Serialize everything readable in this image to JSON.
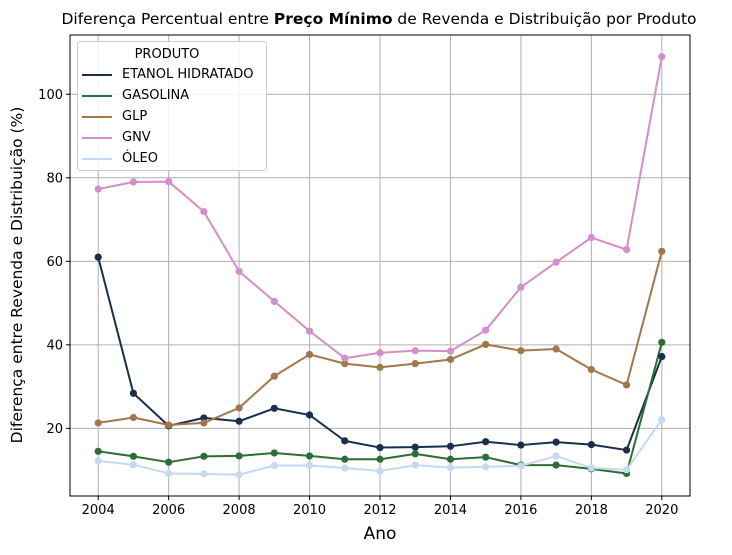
{
  "title": {
    "prefix": "Diferença Percentual entre ",
    "bold": "Preço Mínimo",
    "suffix": " de Revenda e Distribuição por Produto"
  },
  "chart_data": {
    "type": "line",
    "title": "Diferença Percentual entre Preço Mínimo de Revenda e Distribuição por Produto",
    "xlabel": "Ano",
    "ylabel": "Diferença entre Revenda e Distribuição (%)",
    "x": [
      2004,
      2005,
      2006,
      2007,
      2008,
      2009,
      2010,
      2011,
      2012,
      2013,
      2014,
      2015,
      2016,
      2017,
      2018,
      2019,
      2020
    ],
    "xticks": [
      2004,
      2006,
      2008,
      2010,
      2012,
      2014,
      2016,
      2018,
      2020
    ],
    "yticks": [
      20,
      40,
      60,
      80,
      100
    ],
    "xlim": [
      2003.2,
      2020.8
    ],
    "ylim": [
      3.8,
      114.2
    ],
    "grid": true,
    "legend": {
      "title": "PRODUTO",
      "placement": "top-left"
    },
    "series": [
      {
        "name": "ETANOL HIDRATADO",
        "color": "#1a2e4d",
        "values": [
          61.0,
          28.4,
          20.6,
          22.5,
          21.7,
          24.8,
          23.2,
          17.0,
          15.4,
          15.5,
          15.7,
          16.8,
          16.0,
          16.7,
          16.1,
          14.8,
          37.2
        ]
      },
      {
        "name": "GASOLINA",
        "color": "#2d6e35",
        "values": [
          14.5,
          13.3,
          11.9,
          13.3,
          13.4,
          14.1,
          13.4,
          12.6,
          12.6,
          13.9,
          12.6,
          13.1,
          11.2,
          11.2,
          10.3,
          9.2,
          40.6
        ]
      },
      {
        "name": "GLP",
        "color": "#a0784a",
        "values": [
          21.3,
          22.6,
          20.8,
          21.3,
          24.9,
          32.5,
          37.7,
          35.5,
          34.6,
          35.5,
          36.5,
          40.1,
          38.6,
          39.0,
          34.1,
          30.4,
          62.4
        ]
      },
      {
        "name": "GNV",
        "color": "#d48ec8",
        "values": [
          77.3,
          79.0,
          79.1,
          71.9,
          57.6,
          50.4,
          43.3,
          36.8,
          38.1,
          38.6,
          38.5,
          43.5,
          53.8,
          59.8,
          65.7,
          62.8,
          109.0
        ]
      },
      {
        "name": "ÓLEO",
        "color": "#c5daf0",
        "values": [
          12.2,
          11.3,
          9.2,
          9.1,
          8.9,
          11.1,
          11.1,
          10.5,
          9.8,
          11.2,
          10.6,
          10.8,
          11.0,
          13.4,
          10.5,
          10.1,
          22.1
        ]
      }
    ]
  }
}
